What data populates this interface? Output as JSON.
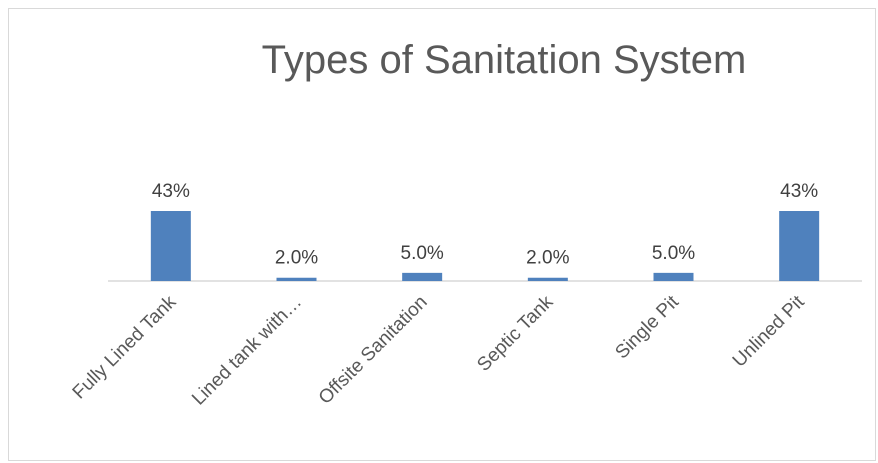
{
  "chart_data": {
    "type": "bar",
    "title": "Types of Sanitation System",
    "categories": [
      "Fully Lined Tank",
      "Lined tank with…",
      "Offsite Sanitation",
      "Septic Tank",
      "Single Pit",
      "Unlined Pit"
    ],
    "values": [
      43,
      2.0,
      5.0,
      2.0,
      5.0,
      43
    ],
    "value_labels": [
      "43%",
      "2.0%",
      "5.0%",
      "2.0%",
      "5.0%",
      "43%"
    ],
    "xlabel": "",
    "ylabel": "",
    "ylim": [
      0,
      43
    ],
    "grid": false,
    "legend": "none",
    "colors": {
      "bar": "#4f81bd",
      "axis": "#d9d9d9",
      "frame": "#d9d9d9"
    }
  }
}
